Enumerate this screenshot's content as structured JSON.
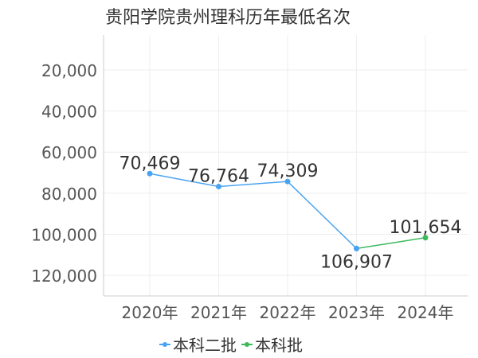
{
  "chart_data": {
    "type": "line",
    "title": "贵阳学院贵州理科历年最低名次",
    "categories": [
      "2020年",
      "2021年",
      "2022年",
      "2023年",
      "2024年"
    ],
    "series": [
      {
        "name": "本科二批",
        "color": "#4aa3f0",
        "values": [
          70469,
          76764,
          74309,
          106907,
          null
        ],
        "labels": [
          "70,469",
          "76,764",
          "74,309",
          "106,907",
          ""
        ]
      },
      {
        "name": "本科批",
        "color": "#3cb95a",
        "values": [
          null,
          null,
          null,
          106907,
          101654
        ],
        "labels": [
          "",
          "",
          "",
          "",
          "101,654"
        ]
      }
    ],
    "y_ticks": [
      "20,000",
      "40,000",
      "60,000",
      "80,000",
      "100,000",
      "120,000"
    ],
    "y_tick_values": [
      20000,
      40000,
      60000,
      80000,
      100000,
      120000
    ],
    "ylim": [
      3000,
      130000
    ],
    "y_inverted": true,
    "grid": true,
    "legend_position": "bottom"
  }
}
